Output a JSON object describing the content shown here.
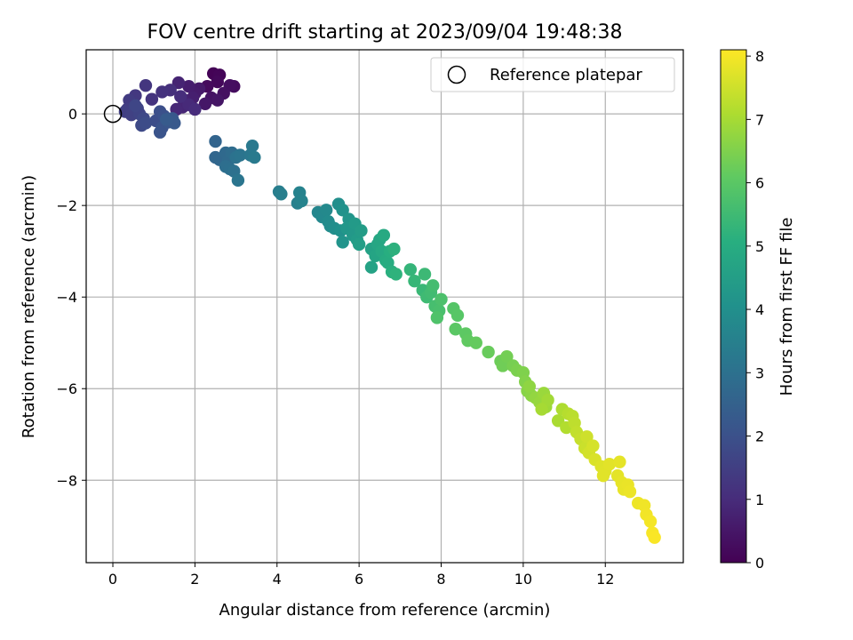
{
  "chart_data": {
    "type": "scatter",
    "title": "FOV centre drift starting at 2023/09/04 19:48:38",
    "xlabel": "Angular distance from reference (arcmin)",
    "ylabel": "Rotation from reference (arcmin)",
    "xlim": [
      -0.65,
      13.9
    ],
    "ylim": [
      -9.8,
      1.4
    ],
    "xticks": [
      0,
      2,
      4,
      6,
      8,
      10,
      12
    ],
    "yticks": [
      0,
      -2,
      -4,
      -6,
      -8
    ],
    "grid": true,
    "colormap": "viridis",
    "colorbar": {
      "label": "Hours from first FF file",
      "min": 0,
      "max": 8.1,
      "ticks": [
        0,
        1,
        2,
        3,
        4,
        5,
        6,
        7,
        8
      ]
    },
    "legend": {
      "position": "top-right",
      "entries": [
        {
          "label": "Reference platepar",
          "marker": "open-circle"
        }
      ]
    },
    "reference_point": {
      "x": 0,
      "y": 0
    },
    "series": [
      {
        "color_by": "hours",
        "points": [
          {
            "x": 2.45,
            "y": 0.88,
            "hours": 0.05
          },
          {
            "x": 2.6,
            "y": 0.85,
            "hours": 0.1
          },
          {
            "x": 2.55,
            "y": 0.7,
            "hours": 0.15
          },
          {
            "x": 2.3,
            "y": 0.6,
            "hours": 0.2
          },
          {
            "x": 2.95,
            "y": 0.6,
            "hours": 0.25
          },
          {
            "x": 2.85,
            "y": 0.62,
            "hours": 0.3
          },
          {
            "x": 2.7,
            "y": 0.45,
            "hours": 0.35
          },
          {
            "x": 2.4,
            "y": 0.35,
            "hours": 0.4
          },
          {
            "x": 2.55,
            "y": 0.3,
            "hours": 0.45
          },
          {
            "x": 2.25,
            "y": 0.22,
            "hours": 0.5
          },
          {
            "x": 2.1,
            "y": 0.55,
            "hours": 0.55
          },
          {
            "x": 2.0,
            "y": 0.45,
            "hours": 0.6
          },
          {
            "x": 1.85,
            "y": 0.6,
            "hours": 0.65
          },
          {
            "x": 1.95,
            "y": 0.35,
            "hours": 0.7
          },
          {
            "x": 1.75,
            "y": 0.3,
            "hours": 0.75
          },
          {
            "x": 1.6,
            "y": 0.68,
            "hours": 0.8
          },
          {
            "x": 1.7,
            "y": 0.15,
            "hours": 0.85
          },
          {
            "x": 1.55,
            "y": 0.1,
            "hours": 0.9
          },
          {
            "x": 1.85,
            "y": 0.2,
            "hours": 0.95
          },
          {
            "x": 2.0,
            "y": 0.1,
            "hours": 1.0
          },
          {
            "x": 1.65,
            "y": 0.38,
            "hours": 1.05
          },
          {
            "x": 1.4,
            "y": 0.52,
            "hours": 1.1
          },
          {
            "x": 1.2,
            "y": 0.48,
            "hours": 1.15
          },
          {
            "x": 0.95,
            "y": 0.32,
            "hours": 1.2
          },
          {
            "x": 0.8,
            "y": 0.62,
            "hours": 1.25
          },
          {
            "x": 0.55,
            "y": 0.4,
            "hours": 1.3
          },
          {
            "x": 0.5,
            "y": 0.25,
            "hours": 1.35
          },
          {
            "x": 0.4,
            "y": 0.3,
            "hours": 1.4
          },
          {
            "x": 0.35,
            "y": 0.1,
            "hours": 1.45
          },
          {
            "x": 0.3,
            "y": 0.05,
            "hours": 1.5
          },
          {
            "x": 0.45,
            "y": -0.02,
            "hours": 1.55
          },
          {
            "x": 0.6,
            "y": 0.12,
            "hours": 1.6
          },
          {
            "x": 0.65,
            "y": 0.0,
            "hours": 1.65
          },
          {
            "x": 0.55,
            "y": 0.18,
            "hours": 1.7
          },
          {
            "x": 0.75,
            "y": -0.1,
            "hours": 1.75
          },
          {
            "x": 0.7,
            "y": -0.25,
            "hours": 1.8
          },
          {
            "x": 0.8,
            "y": -0.2,
            "hours": 1.85
          },
          {
            "x": 1.05,
            "y": -0.15,
            "hours": 1.9
          },
          {
            "x": 1.15,
            "y": 0.05,
            "hours": 1.95
          },
          {
            "x": 1.25,
            "y": -0.05,
            "hours": 2.0
          },
          {
            "x": 1.2,
            "y": -0.3,
            "hours": 2.05
          },
          {
            "x": 1.15,
            "y": -0.4,
            "hours": 2.1
          },
          {
            "x": 1.35,
            "y": -0.18,
            "hours": 2.15
          },
          {
            "x": 1.45,
            "y": -0.1,
            "hours": 2.2
          },
          {
            "x": 1.5,
            "y": -0.2,
            "hours": 2.25
          },
          {
            "x": 1.3,
            "y": -0.12,
            "hours": 2.3
          },
          {
            "x": 2.5,
            "y": -0.6,
            "hours": 2.6
          },
          {
            "x": 2.5,
            "y": -0.95,
            "hours": 2.65
          },
          {
            "x": 2.6,
            "y": -1.0,
            "hours": 2.7
          },
          {
            "x": 2.75,
            "y": -0.85,
            "hours": 2.75
          },
          {
            "x": 2.8,
            "y": -1.05,
            "hours": 2.8
          },
          {
            "x": 2.9,
            "y": -0.85,
            "hours": 2.85
          },
          {
            "x": 2.75,
            "y": -1.15,
            "hours": 2.9
          },
          {
            "x": 2.85,
            "y": -1.2,
            "hours": 2.95
          },
          {
            "x": 2.95,
            "y": -1.25,
            "hours": 3.0
          },
          {
            "x": 3.0,
            "y": -0.95,
            "hours": 3.05
          },
          {
            "x": 3.1,
            "y": -0.9,
            "hours": 3.1
          },
          {
            "x": 3.05,
            "y": -1.45,
            "hours": 3.15
          },
          {
            "x": 3.35,
            "y": -0.9,
            "hours": 3.2
          },
          {
            "x": 3.4,
            "y": -0.7,
            "hours": 3.25
          },
          {
            "x": 3.45,
            "y": -0.95,
            "hours": 3.3
          },
          {
            "x": 4.05,
            "y": -1.7,
            "hours": 3.4
          },
          {
            "x": 4.1,
            "y": -1.75,
            "hours": 3.45
          },
          {
            "x": 4.5,
            "y": -1.95,
            "hours": 3.5
          },
          {
            "x": 4.55,
            "y": -1.72,
            "hours": 3.55
          },
          {
            "x": 4.6,
            "y": -1.9,
            "hours": 3.6
          },
          {
            "x": 5.0,
            "y": -2.15,
            "hours": 3.7
          },
          {
            "x": 5.1,
            "y": -2.25,
            "hours": 3.75
          },
          {
            "x": 5.2,
            "y": -2.1,
            "hours": 3.8
          },
          {
            "x": 5.25,
            "y": -2.35,
            "hours": 3.85
          },
          {
            "x": 5.3,
            "y": -2.45,
            "hours": 3.9
          },
          {
            "x": 5.4,
            "y": -2.5,
            "hours": 3.95
          },
          {
            "x": 5.5,
            "y": -1.97,
            "hours": 4.0
          },
          {
            "x": 5.55,
            "y": -2.55,
            "hours": 4.05
          },
          {
            "x": 5.6,
            "y": -2.1,
            "hours": 4.1
          },
          {
            "x": 5.6,
            "y": -2.8,
            "hours": 4.15
          },
          {
            "x": 5.75,
            "y": -2.3,
            "hours": 4.2
          },
          {
            "x": 5.7,
            "y": -2.5,
            "hours": 4.25
          },
          {
            "x": 5.85,
            "y": -2.65,
            "hours": 4.3
          },
          {
            "x": 5.9,
            "y": -2.4,
            "hours": 4.35
          },
          {
            "x": 5.95,
            "y": -2.75,
            "hours": 4.4
          },
          {
            "x": 6.05,
            "y": -2.55,
            "hours": 4.45
          },
          {
            "x": 6.0,
            "y": -2.85,
            "hours": 4.5
          },
          {
            "x": 6.3,
            "y": -2.95,
            "hours": 4.6
          },
          {
            "x": 6.3,
            "y": -3.35,
            "hours": 4.65
          },
          {
            "x": 6.4,
            "y": -3.1,
            "hours": 4.7
          },
          {
            "x": 6.45,
            "y": -2.85,
            "hours": 4.75
          },
          {
            "x": 6.5,
            "y": -2.75,
            "hours": 4.8
          },
          {
            "x": 6.55,
            "y": -3.0,
            "hours": 4.85
          },
          {
            "x": 6.6,
            "y": -2.65,
            "hours": 4.9
          },
          {
            "x": 6.65,
            "y": -3.2,
            "hours": 4.95
          },
          {
            "x": 6.7,
            "y": -3.25,
            "hours": 5.0
          },
          {
            "x": 6.75,
            "y": -3.0,
            "hours": 5.05
          },
          {
            "x": 6.8,
            "y": -3.45,
            "hours": 5.1
          },
          {
            "x": 6.85,
            "y": -2.95,
            "hours": 5.15
          },
          {
            "x": 6.9,
            "y": -3.5,
            "hours": 5.2
          },
          {
            "x": 7.25,
            "y": -3.4,
            "hours": 5.3
          },
          {
            "x": 7.35,
            "y": -3.65,
            "hours": 5.35
          },
          {
            "x": 7.55,
            "y": -3.85,
            "hours": 5.4
          },
          {
            "x": 7.6,
            "y": -3.5,
            "hours": 5.45
          },
          {
            "x": 7.65,
            "y": -4.0,
            "hours": 5.5
          },
          {
            "x": 7.75,
            "y": -3.9,
            "hours": 5.55
          },
          {
            "x": 7.8,
            "y": -3.75,
            "hours": 5.6
          },
          {
            "x": 7.85,
            "y": -4.2,
            "hours": 5.65
          },
          {
            "x": 7.95,
            "y": -4.3,
            "hours": 5.7
          },
          {
            "x": 8.0,
            "y": -4.05,
            "hours": 5.75
          },
          {
            "x": 7.9,
            "y": -4.45,
            "hours": 5.8
          },
          {
            "x": 8.3,
            "y": -4.25,
            "hours": 5.9
          },
          {
            "x": 8.4,
            "y": -4.4,
            "hours": 5.95
          },
          {
            "x": 8.35,
            "y": -4.7,
            "hours": 6.0
          },
          {
            "x": 8.6,
            "y": -4.8,
            "hours": 6.05
          },
          {
            "x": 8.65,
            "y": -4.95,
            "hours": 6.1
          },
          {
            "x": 8.85,
            "y": -5.0,
            "hours": 6.15
          },
          {
            "x": 9.15,
            "y": -5.2,
            "hours": 6.2
          },
          {
            "x": 9.45,
            "y": -5.4,
            "hours": 6.25
          },
          {
            "x": 9.5,
            "y": -5.5,
            "hours": 6.3
          },
          {
            "x": 9.6,
            "y": -5.3,
            "hours": 6.35
          },
          {
            "x": 9.75,
            "y": -5.5,
            "hours": 6.4
          },
          {
            "x": 9.85,
            "y": -5.6,
            "hours": 6.45
          },
          {
            "x": 10.0,
            "y": -5.65,
            "hours": 6.5
          },
          {
            "x": 10.05,
            "y": -5.85,
            "hours": 6.55
          },
          {
            "x": 10.1,
            "y": -6.05,
            "hours": 6.6
          },
          {
            "x": 10.2,
            "y": -6.15,
            "hours": 6.65
          },
          {
            "x": 10.15,
            "y": -5.95,
            "hours": 6.7
          },
          {
            "x": 10.3,
            "y": -6.2,
            "hours": 6.75
          },
          {
            "x": 10.4,
            "y": -6.3,
            "hours": 6.8
          },
          {
            "x": 10.5,
            "y": -6.1,
            "hours": 6.85
          },
          {
            "x": 10.55,
            "y": -6.4,
            "hours": 6.9
          },
          {
            "x": 10.6,
            "y": -6.25,
            "hours": 6.95
          },
          {
            "x": 10.45,
            "y": -6.45,
            "hours": 7.0
          },
          {
            "x": 10.85,
            "y": -6.7,
            "hours": 7.05
          },
          {
            "x": 10.95,
            "y": -6.45,
            "hours": 7.1
          },
          {
            "x": 11.05,
            "y": -6.85,
            "hours": 7.15
          },
          {
            "x": 11.1,
            "y": -6.55,
            "hours": 7.2
          },
          {
            "x": 11.2,
            "y": -6.6,
            "hours": 7.25
          },
          {
            "x": 11.25,
            "y": -6.75,
            "hours": 7.3
          },
          {
            "x": 11.3,
            "y": -6.95,
            "hours": 7.35
          },
          {
            "x": 11.4,
            "y": -7.1,
            "hours": 7.4
          },
          {
            "x": 11.5,
            "y": -7.3,
            "hours": 7.45
          },
          {
            "x": 11.55,
            "y": -7.05,
            "hours": 7.5
          },
          {
            "x": 11.6,
            "y": -7.4,
            "hours": 7.55
          },
          {
            "x": 11.7,
            "y": -7.25,
            "hours": 7.6
          },
          {
            "x": 11.75,
            "y": -7.55,
            "hours": 7.65
          },
          {
            "x": 11.9,
            "y": -7.7,
            "hours": 7.7
          },
          {
            "x": 12.0,
            "y": -7.8,
            "hours": 7.72
          },
          {
            "x": 11.95,
            "y": -7.9,
            "hours": 7.74
          },
          {
            "x": 12.1,
            "y": -7.65,
            "hours": 7.76
          },
          {
            "x": 12.3,
            "y": -7.9,
            "hours": 7.78
          },
          {
            "x": 12.35,
            "y": -7.6,
            "hours": 7.8
          },
          {
            "x": 12.4,
            "y": -8.05,
            "hours": 7.82
          },
          {
            "x": 12.45,
            "y": -8.2,
            "hours": 7.84
          },
          {
            "x": 12.55,
            "y": -8.1,
            "hours": 7.86
          },
          {
            "x": 12.6,
            "y": -8.25,
            "hours": 7.88
          },
          {
            "x": 12.8,
            "y": -8.5,
            "hours": 7.9
          },
          {
            "x": 12.95,
            "y": -8.55,
            "hours": 7.93
          },
          {
            "x": 13.0,
            "y": -8.75,
            "hours": 7.96
          },
          {
            "x": 13.1,
            "y": -8.9,
            "hours": 7.99
          },
          {
            "x": 13.15,
            "y": -9.15,
            "hours": 8.02
          },
          {
            "x": 13.2,
            "y": -9.25,
            "hours": 8.05
          }
        ]
      }
    ]
  }
}
